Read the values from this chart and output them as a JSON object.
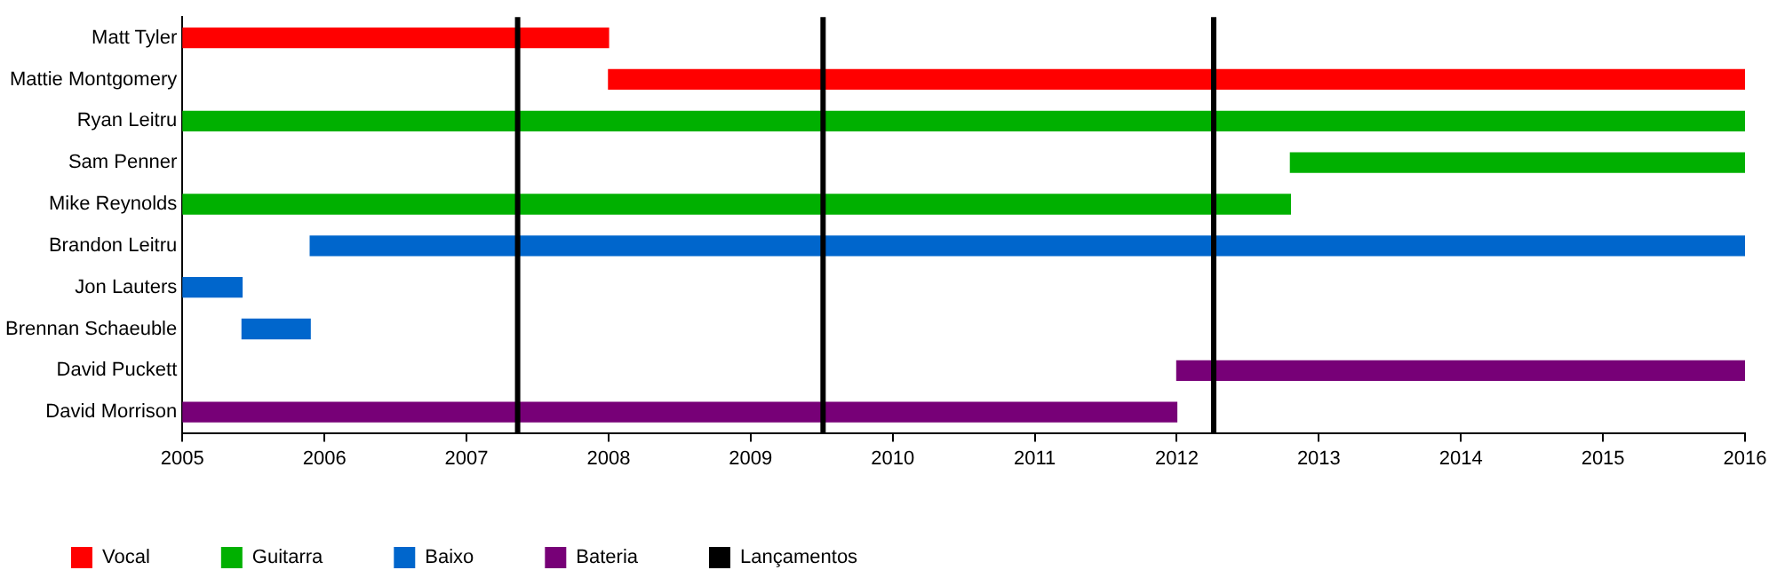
{
  "chart_data": {
    "type": "bar",
    "orientation": "horizontal",
    "categories": [
      "Matt Tyler",
      "Mattie Montgomery",
      "Ryan Leitru",
      "Sam Penner",
      "Mike Reynolds",
      "Brandon Leitru",
      "Jon Lauters",
      "Brennan Schaeuble",
      "David Puckett",
      "David Morrison"
    ],
    "series": [
      {
        "name": "Vocal",
        "color": "#ff0000",
        "base": [
          2005,
          2008,
          null,
          null,
          null,
          null,
          null,
          null,
          null,
          null
        ],
        "values": [
          3,
          8,
          null,
          null,
          null,
          null,
          null,
          null,
          null,
          null
        ]
      },
      {
        "name": "Guitarra",
        "color": "#00b000",
        "base": [
          null,
          null,
          2005,
          2012.8,
          2005,
          null,
          null,
          null,
          null,
          null
        ],
        "values": [
          null,
          null,
          11,
          3.2,
          7.8,
          null,
          null,
          null,
          null,
          null
        ]
      },
      {
        "name": "Baixo",
        "color": "#0066cc",
        "base": [
          null,
          null,
          null,
          null,
          null,
          2005.9,
          2005,
          2005.42,
          null,
          null
        ],
        "values": [
          null,
          null,
          null,
          null,
          null,
          10.1,
          0.42,
          0.48,
          null,
          null
        ]
      },
      {
        "name": "Bateria",
        "color": "#770077",
        "base": [
          null,
          null,
          null,
          null,
          null,
          null,
          null,
          null,
          2012,
          2005
        ],
        "values": [
          null,
          null,
          null,
          null,
          null,
          null,
          null,
          null,
          4,
          7
        ]
      }
    ],
    "ref_lines": [
      {
        "axis": "x",
        "value": 2007.36,
        "label": "Lançamentos",
        "color": "#000000"
      },
      {
        "axis": "x",
        "value": 2009.51,
        "color": "#000000"
      },
      {
        "axis": "x",
        "value": 2012.26,
        "color": "#000000"
      }
    ],
    "xlim": [
      2005,
      2016
    ],
    "xticks": [
      2005,
      2006,
      2007,
      2008,
      2009,
      2010,
      2011,
      2012,
      2013,
      2014,
      2015,
      2016
    ],
    "grid": false,
    "legend": "bottom"
  }
}
